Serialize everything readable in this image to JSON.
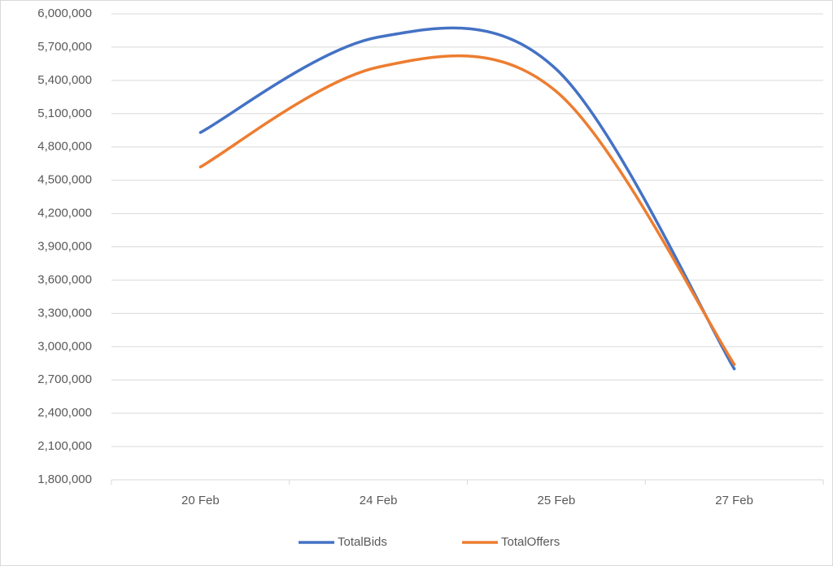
{
  "chart_data": {
    "type": "line",
    "categories": [
      "20 Feb",
      "24 Feb",
      "25 Feb",
      "27 Feb"
    ],
    "series": [
      {
        "name": "TotalBids",
        "color": "#4472c4",
        "values": [
          4930000,
          5790000,
          5500000,
          2800000
        ]
      },
      {
        "name": "TotalOffers",
        "color": "#ed7d31",
        "values": [
          4620000,
          5520000,
          5300000,
          2840000
        ]
      }
    ],
    "ylim": [
      1800000,
      6000000
    ],
    "yticks": [
      {
        "value": 1800000,
        "label": "1,800,000"
      },
      {
        "value": 2100000,
        "label": "2,100,000"
      },
      {
        "value": 2400000,
        "label": "2,400,000"
      },
      {
        "value": 2700000,
        "label": "2,700,000"
      },
      {
        "value": 3000000,
        "label": "3,000,000"
      },
      {
        "value": 3300000,
        "label": "3,300,000"
      },
      {
        "value": 3600000,
        "label": "3,600,000"
      },
      {
        "value": 3900000,
        "label": "3,900,000"
      },
      {
        "value": 4200000,
        "label": "4,200,000"
      },
      {
        "value": 4500000,
        "label": "4,500,000"
      },
      {
        "value": 4800000,
        "label": "4,800,000"
      },
      {
        "value": 5100000,
        "label": "5,100,000"
      },
      {
        "value": 5400000,
        "label": "5,400,000"
      },
      {
        "value": 5700000,
        "label": "5,700,000"
      },
      {
        "value": 6000000,
        "label": "6,000,000"
      }
    ],
    "grid": true,
    "smooth": true,
    "legend": "bottom"
  }
}
